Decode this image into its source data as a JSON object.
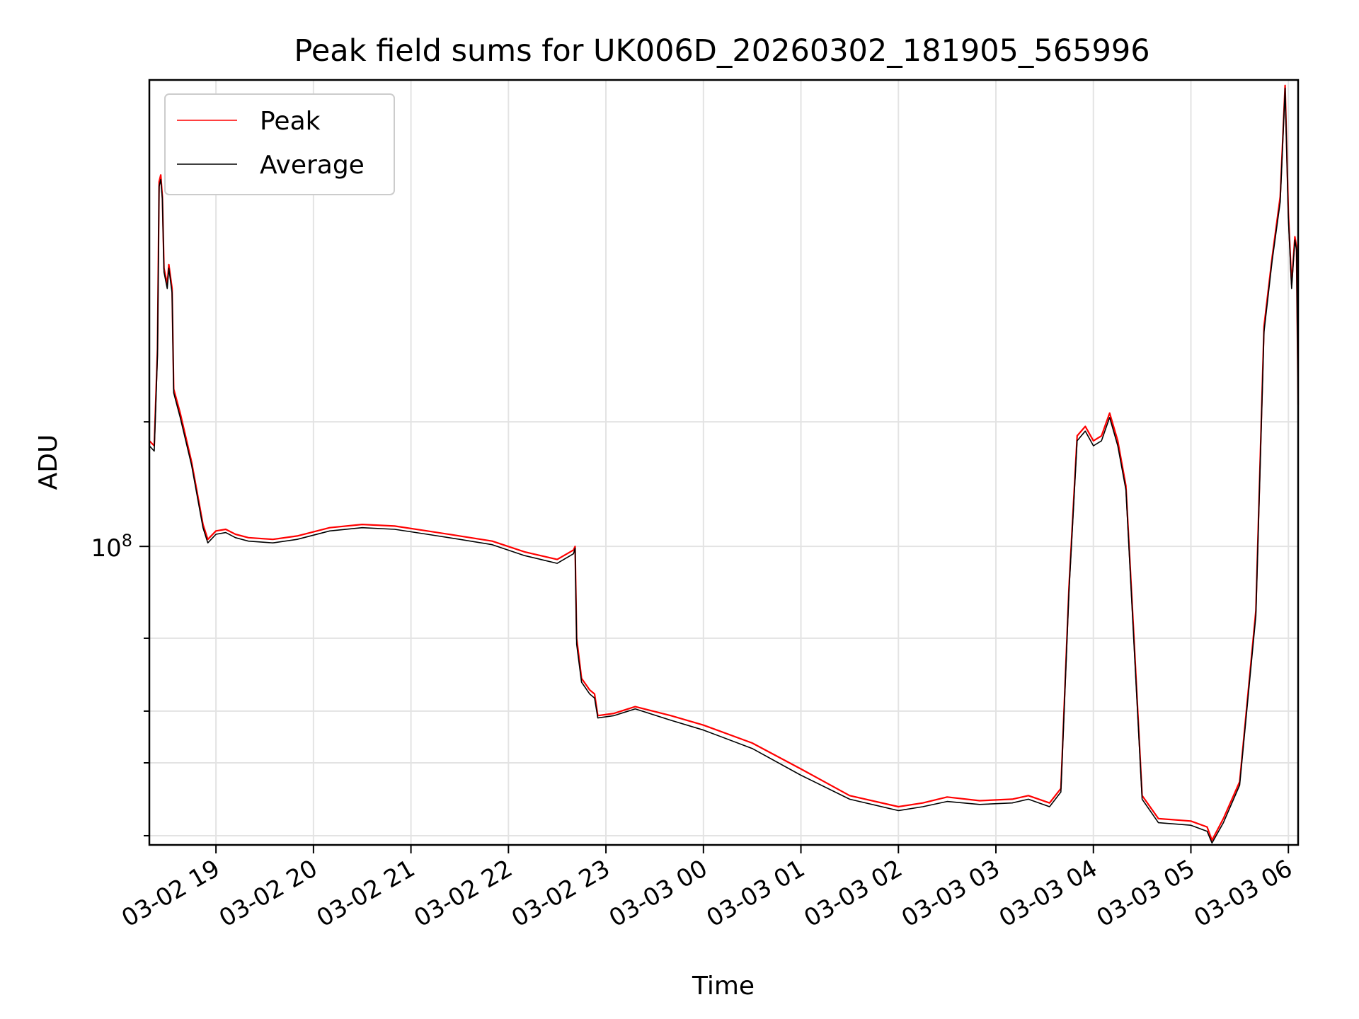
{
  "chart_data": {
    "type": "line",
    "title": "Peak field sums for UK006D_20260302_181905_565996",
    "xlabel": "Time",
    "ylabel": "ADU",
    "yscale": "log",
    "grid": true,
    "legend_position": "top-left",
    "x_ticks": [
      "03-02 19",
      "03-02 20",
      "03-02 21",
      "03-02 22",
      "03-02 23",
      "03-03 00",
      "03-03 01",
      "03-03 02",
      "03-03 03",
      "03-03 04",
      "03-03 05",
      "03-03 06"
    ],
    "y_tick_labels": [
      {
        "base": "10",
        "exp": "8",
        "value": 100000000
      }
    ],
    "y_minor_ticks": [
      20000000,
      30000000,
      40000000,
      60000000,
      200000000
    ],
    "xlim": [
      "2026-03-02 18:19",
      "2026-03-03 06:06"
    ],
    "ylim": [
      19000000,
      1340000000
    ],
    "series": [
      {
        "name": "Peak",
        "color": "#ff0000",
        "points": [
          [
            "2026-03-02 18:19",
            180000000
          ],
          [
            "2026-03-02 18:22",
            175000000
          ],
          [
            "2026-03-02 18:24",
            300000000
          ],
          [
            "2026-03-02 18:25",
            760000000
          ],
          [
            "2026-03-02 18:26",
            790000000
          ],
          [
            "2026-03-02 18:27",
            700000000
          ],
          [
            "2026-03-02 18:28",
            470000000
          ],
          [
            "2026-03-02 18:30",
            430000000
          ],
          [
            "2026-03-02 18:31",
            480000000
          ],
          [
            "2026-03-02 18:33",
            420000000
          ],
          [
            "2026-03-02 18:34",
            240000000
          ],
          [
            "2026-03-02 18:38",
            210000000
          ],
          [
            "2026-03-02 18:45",
            160000000
          ],
          [
            "2026-03-02 18:52",
            113000000
          ],
          [
            "2026-03-02 18:55",
            104000000
          ],
          [
            "2026-03-02 19:00",
            109000000
          ],
          [
            "2026-03-02 19:06",
            110000000
          ],
          [
            "2026-03-02 19:12",
            107000000
          ],
          [
            "2026-03-02 19:20",
            105000000
          ],
          [
            "2026-03-02 19:35",
            104000000
          ],
          [
            "2026-03-02 19:50",
            106000000
          ],
          [
            "2026-03-02 20:10",
            111000000
          ],
          [
            "2026-03-02 20:30",
            113000000
          ],
          [
            "2026-03-02 20:50",
            112000000
          ],
          [
            "2026-03-02 21:10",
            109000000
          ],
          [
            "2026-03-02 21:30",
            106000000
          ],
          [
            "2026-03-02 21:50",
            103000000
          ],
          [
            "2026-03-02 22:10",
            97000000
          ],
          [
            "2026-03-02 22:30",
            93000000
          ],
          [
            "2026-03-02 22:40",
            98000000
          ],
          [
            "2026-03-02 22:41",
            100000000
          ],
          [
            "2026-03-02 22:42",
            60000000
          ],
          [
            "2026-03-02 22:45",
            48000000
          ],
          [
            "2026-03-02 22:50",
            45000000
          ],
          [
            "2026-03-02 22:53",
            44000000
          ],
          [
            "2026-03-02 22:55",
            39000000
          ],
          [
            "2026-03-02 23:05",
            39500000
          ],
          [
            "2026-03-02 23:18",
            41000000
          ],
          [
            "2026-03-02 23:40",
            39000000
          ],
          [
            "2026-03-03 00:00",
            37000000
          ],
          [
            "2026-03-03 00:30",
            33500000
          ],
          [
            "2026-03-03 01:00",
            29000000
          ],
          [
            "2026-03-03 01:30",
            25000000
          ],
          [
            "2026-03-03 02:00",
            23500000
          ],
          [
            "2026-03-03 02:15",
            24000000
          ],
          [
            "2026-03-03 02:30",
            24800000
          ],
          [
            "2026-03-03 02:50",
            24300000
          ],
          [
            "2026-03-03 03:10",
            24500000
          ],
          [
            "2026-03-03 03:20",
            25000000
          ],
          [
            "2026-03-03 03:33",
            24000000
          ],
          [
            "2026-03-03 03:40",
            26000000
          ],
          [
            "2026-03-03 03:45",
            80000000
          ],
          [
            "2026-03-03 03:50",
            185000000
          ],
          [
            "2026-03-03 03:55",
            195000000
          ],
          [
            "2026-03-03 04:00",
            180000000
          ],
          [
            "2026-03-03 04:05",
            185000000
          ],
          [
            "2026-03-03 04:10",
            210000000
          ],
          [
            "2026-03-03 04:15",
            180000000
          ],
          [
            "2026-03-03 04:20",
            140000000
          ],
          [
            "2026-03-03 04:25",
            60000000
          ],
          [
            "2026-03-03 04:30",
            25000000
          ],
          [
            "2026-03-03 04:40",
            22000000
          ],
          [
            "2026-03-03 05:00",
            21700000
          ],
          [
            "2026-03-03 05:10",
            21000000
          ],
          [
            "2026-03-03 05:13",
            19500000
          ],
          [
            "2026-03-03 05:20",
            22000000
          ],
          [
            "2026-03-03 05:30",
            27000000
          ],
          [
            "2026-03-03 05:40",
            70000000
          ],
          [
            "2026-03-03 05:45",
            340000000
          ],
          [
            "2026-03-03 05:50",
            500000000
          ],
          [
            "2026-03-03 05:55",
            700000000
          ],
          [
            "2026-03-03 05:58",
            1300000000
          ],
          [
            "2026-03-03 06:00",
            640000000
          ],
          [
            "2026-03-03 06:02",
            430000000
          ],
          [
            "2026-03-03 06:04",
            560000000
          ],
          [
            "2026-03-03 06:05",
            530000000
          ],
          [
            "2026-03-03 06:06",
            220000000
          ]
        ]
      },
      {
        "name": "Average",
        "color": "#000000",
        "points": [
          [
            "2026-03-02 18:19",
            175000000
          ],
          [
            "2026-03-02 18:22",
            170000000
          ],
          [
            "2026-03-02 18:24",
            290000000
          ],
          [
            "2026-03-02 18:25",
            740000000
          ],
          [
            "2026-03-02 18:26",
            770000000
          ],
          [
            "2026-03-02 18:27",
            690000000
          ],
          [
            "2026-03-02 18:28",
            460000000
          ],
          [
            "2026-03-02 18:30",
            420000000
          ],
          [
            "2026-03-02 18:31",
            470000000
          ],
          [
            "2026-03-02 18:33",
            410000000
          ],
          [
            "2026-03-02 18:34",
            235000000
          ],
          [
            "2026-03-02 18:38",
            205000000
          ],
          [
            "2026-03-02 18:45",
            157000000
          ],
          [
            "2026-03-02 18:52",
            111000000
          ],
          [
            "2026-03-02 18:55",
            102000000
          ],
          [
            "2026-03-02 19:00",
            107000000
          ],
          [
            "2026-03-02 19:06",
            108000000
          ],
          [
            "2026-03-02 19:12",
            105000000
          ],
          [
            "2026-03-02 19:20",
            103000000
          ],
          [
            "2026-03-02 19:35",
            102000000
          ],
          [
            "2026-03-02 19:50",
            104000000
          ],
          [
            "2026-03-02 20:10",
            109000000
          ],
          [
            "2026-03-02 20:30",
            111000000
          ],
          [
            "2026-03-02 20:50",
            110000000
          ],
          [
            "2026-03-02 21:10",
            107000000
          ],
          [
            "2026-03-02 21:30",
            104000000
          ],
          [
            "2026-03-02 21:50",
            101000000
          ],
          [
            "2026-03-02 22:10",
            95000000
          ],
          [
            "2026-03-02 22:30",
            91000000
          ],
          [
            "2026-03-02 22:40",
            96000000
          ],
          [
            "2026-03-02 22:41",
            99000000
          ],
          [
            "2026-03-02 22:42",
            58000000
          ],
          [
            "2026-03-02 22:45",
            47000000
          ],
          [
            "2026-03-02 22:50",
            44000000
          ],
          [
            "2026-03-02 22:53",
            43000000
          ],
          [
            "2026-03-02 22:55",
            38500000
          ],
          [
            "2026-03-02 23:05",
            39000000
          ],
          [
            "2026-03-02 23:18",
            40500000
          ],
          [
            "2026-03-02 23:40",
            38000000
          ],
          [
            "2026-03-03 00:00",
            36000000
          ],
          [
            "2026-03-03 00:30",
            32500000
          ],
          [
            "2026-03-03 01:00",
            28000000
          ],
          [
            "2026-03-03 01:30",
            24500000
          ],
          [
            "2026-03-03 02:00",
            23000000
          ],
          [
            "2026-03-03 02:15",
            23500000
          ],
          [
            "2026-03-03 02:30",
            24200000
          ],
          [
            "2026-03-03 02:50",
            23800000
          ],
          [
            "2026-03-03 03:10",
            24000000
          ],
          [
            "2026-03-03 03:20",
            24500000
          ],
          [
            "2026-03-03 03:33",
            23500000
          ],
          [
            "2026-03-03 03:40",
            25500000
          ],
          [
            "2026-03-03 03:45",
            78000000
          ],
          [
            "2026-03-03 03:50",
            180000000
          ],
          [
            "2026-03-03 03:55",
            190000000
          ],
          [
            "2026-03-03 04:00",
            175000000
          ],
          [
            "2026-03-03 04:05",
            180000000
          ],
          [
            "2026-03-03 04:10",
            205000000
          ],
          [
            "2026-03-03 04:15",
            175000000
          ],
          [
            "2026-03-03 04:20",
            137000000
          ],
          [
            "2026-03-03 04:25",
            58000000
          ],
          [
            "2026-03-03 04:30",
            24500000
          ],
          [
            "2026-03-03 04:40",
            21500000
          ],
          [
            "2026-03-03 05:00",
            21200000
          ],
          [
            "2026-03-03 05:10",
            20500000
          ],
          [
            "2026-03-03 05:13",
            19200000
          ],
          [
            "2026-03-03 05:20",
            21500000
          ],
          [
            "2026-03-03 05:30",
            26500000
          ],
          [
            "2026-03-03 05:40",
            68000000
          ],
          [
            "2026-03-03 05:45",
            330000000
          ],
          [
            "2026-03-03 05:50",
            490000000
          ],
          [
            "2026-03-03 05:55",
            680000000
          ],
          [
            "2026-03-03 05:58",
            1280000000
          ],
          [
            "2026-03-03 06:00",
            620000000
          ],
          [
            "2026-03-03 06:02",
            420000000
          ],
          [
            "2026-03-03 06:04",
            550000000
          ],
          [
            "2026-03-03 06:05",
            520000000
          ],
          [
            "2026-03-03 06:06",
            215000000
          ]
        ]
      }
    ]
  }
}
